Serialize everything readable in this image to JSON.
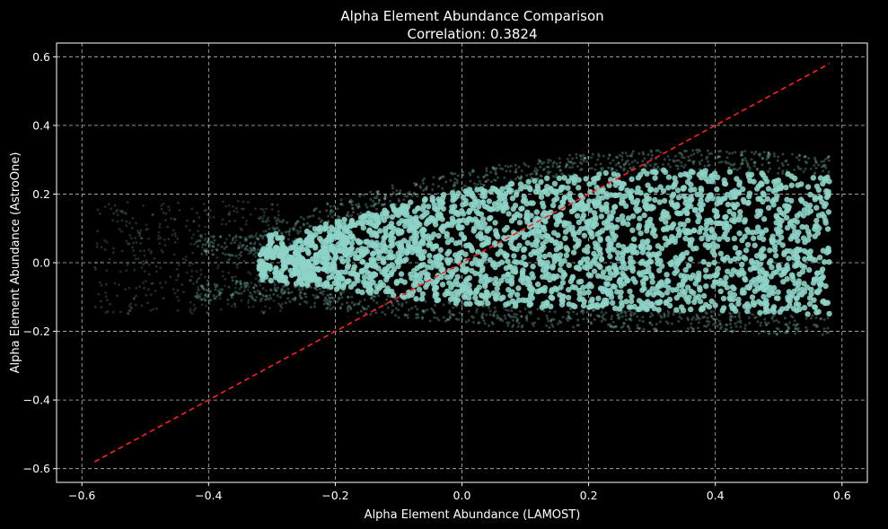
{
  "chart_data": {
    "type": "scatter",
    "title": "Alpha Element Abundance Comparison",
    "subtitle": "Correlation: 0.3824",
    "xlabel": "Alpha Element Abundance (LAMOST)",
    "ylabel": "Alpha Element Abundance (AstroOne)",
    "xlim": [
      -0.64,
      0.64
    ],
    "ylim": [
      -0.64,
      0.64
    ],
    "xticks": [
      -0.6,
      -0.4,
      -0.2,
      0.0,
      0.2,
      0.4,
      0.6
    ],
    "yticks": [
      -0.6,
      -0.4,
      -0.2,
      0.0,
      0.2,
      0.4,
      0.6
    ],
    "xtick_labels": [
      "−0.6",
      "−0.4",
      "−0.2",
      "0.0",
      "0.2",
      "0.4",
      "0.6"
    ],
    "ytick_labels": [
      "−0.6",
      "−0.4",
      "−0.2",
      "0.0",
      "0.2",
      "0.4",
      "0.6"
    ],
    "grid": true,
    "background": "#000000",
    "point_color": "#8dd3c7",
    "reference_line": {
      "x": [
        -0.58,
        0.58
      ],
      "y": [
        -0.58,
        0.58
      ],
      "color": "#ff2020",
      "style": "dashed"
    },
    "dense_region": {
      "x_range": [
        -0.32,
        0.58
      ],
      "y_upper": [
        [
          -0.32,
          0.02
        ],
        [
          -0.3,
          0.1
        ],
        [
          -0.27,
          0.05
        ],
        [
          -0.24,
          0.1
        ],
        [
          -0.2,
          0.12
        ],
        [
          -0.1,
          0.17
        ],
        [
          0.0,
          0.21
        ],
        [
          0.1,
          0.24
        ],
        [
          0.2,
          0.26
        ],
        [
          0.3,
          0.27
        ],
        [
          0.4,
          0.27
        ],
        [
          0.5,
          0.26
        ],
        [
          0.58,
          0.25
        ]
      ],
      "y_lower": [
        [
          -0.32,
          -0.05
        ],
        [
          -0.2,
          -0.08
        ],
        [
          -0.1,
          -0.1
        ],
        [
          0.0,
          -0.12
        ],
        [
          0.1,
          -0.13
        ],
        [
          0.2,
          -0.13
        ],
        [
          0.3,
          -0.14
        ],
        [
          0.4,
          -0.14
        ],
        [
          0.5,
          -0.15
        ],
        [
          0.58,
          -0.15
        ]
      ]
    }
  }
}
